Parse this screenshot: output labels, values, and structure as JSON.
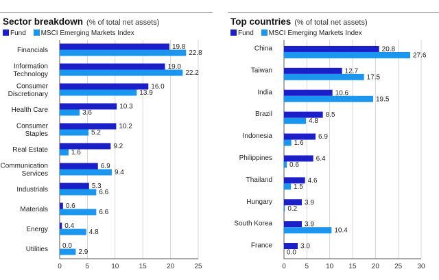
{
  "colors": {
    "fund": "#1b1fc7",
    "index": "#1a96ef",
    "grid": "#cccccc",
    "axis": "#555555"
  },
  "chart_data": [
    {
      "type": "bar",
      "orientation": "horizontal",
      "title": "Sector breakdown",
      "subtitle": "(% of total net assets)",
      "legend": [
        "Fund",
        "MSCI Emerging Markets Index"
      ],
      "xlim": [
        0,
        25
      ],
      "xticks": [
        "0",
        "5",
        "10",
        "15",
        "20",
        "25"
      ],
      "categories": [
        [
          "Financials"
        ],
        [
          "Information",
          "Technology"
        ],
        [
          "Consumer",
          "Discretionary"
        ],
        [
          "Health Care"
        ],
        [
          "Consumer",
          "Staples"
        ],
        [
          "Real Estate"
        ],
        [
          "Communication",
          "Services"
        ],
        [
          "Industrials"
        ],
        [
          "Materials"
        ],
        [
          "Energy"
        ],
        [
          "Utilities"
        ]
      ],
      "series": [
        {
          "name": "Fund",
          "values": [
            19.8,
            19.0,
            16.0,
            10.3,
            10.2,
            9.2,
            6.9,
            5.3,
            0.6,
            0.4,
            0.0
          ],
          "labels": [
            "19.8",
            "19.0",
            "16.0",
            "10.3",
            "10.2",
            "9.2",
            "6.9",
            "5.3",
            "0.6",
            "0.4",
            "0.0"
          ]
        },
        {
          "name": "MSCI Emerging Markets Index",
          "values": [
            22.8,
            22.2,
            13.9,
            3.6,
            5.2,
            1.6,
            9.4,
            6.6,
            6.6,
            4.8,
            2.9
          ],
          "labels": [
            "22.8",
            "22.2",
            "13.9",
            "3.6",
            "5.2",
            "1.6",
            "9.4",
            "6.6",
            "6.6",
            "4.8",
            "2.9"
          ]
        }
      ]
    },
    {
      "type": "bar",
      "orientation": "horizontal",
      "title": "Top countries",
      "subtitle": "(% of total net assets)",
      "legend": [
        "Fund",
        "MSCI Emerging Markets Index"
      ],
      "xlim": [
        0,
        30
      ],
      "xticks": [
        "0",
        "5",
        "10",
        "15",
        "20",
        "25",
        "30"
      ],
      "categories": [
        [
          "China"
        ],
        [
          "Taiwan"
        ],
        [
          "India"
        ],
        [
          "Brazil"
        ],
        [
          "Indonesia"
        ],
        [
          "Philippines"
        ],
        [
          "Thailand"
        ],
        [
          "Hungary"
        ],
        [
          "South Korea"
        ],
        [
          "France"
        ]
      ],
      "series": [
        {
          "name": "Fund",
          "values": [
            20.8,
            12.7,
            10.6,
            8.5,
            6.9,
            6.4,
            4.6,
            3.9,
            3.9,
            3.0
          ],
          "labels": [
            "20.8",
            "12.7",
            "10.6",
            "8.5",
            "6.9",
            "6.4",
            "4.6",
            "3.9",
            "3.9",
            "3.0"
          ]
        },
        {
          "name": "MSCI Emerging Markets Index",
          "values": [
            27.6,
            17.5,
            19.5,
            4.8,
            1.6,
            0.6,
            1.5,
            0.2,
            10.4,
            0.0
          ],
          "labels": [
            "27.6",
            "17.5",
            "19.5",
            "4.8",
            "1.6",
            "0.6",
            "1.5",
            "0.2",
            "10.4",
            "0.0"
          ]
        }
      ]
    }
  ]
}
